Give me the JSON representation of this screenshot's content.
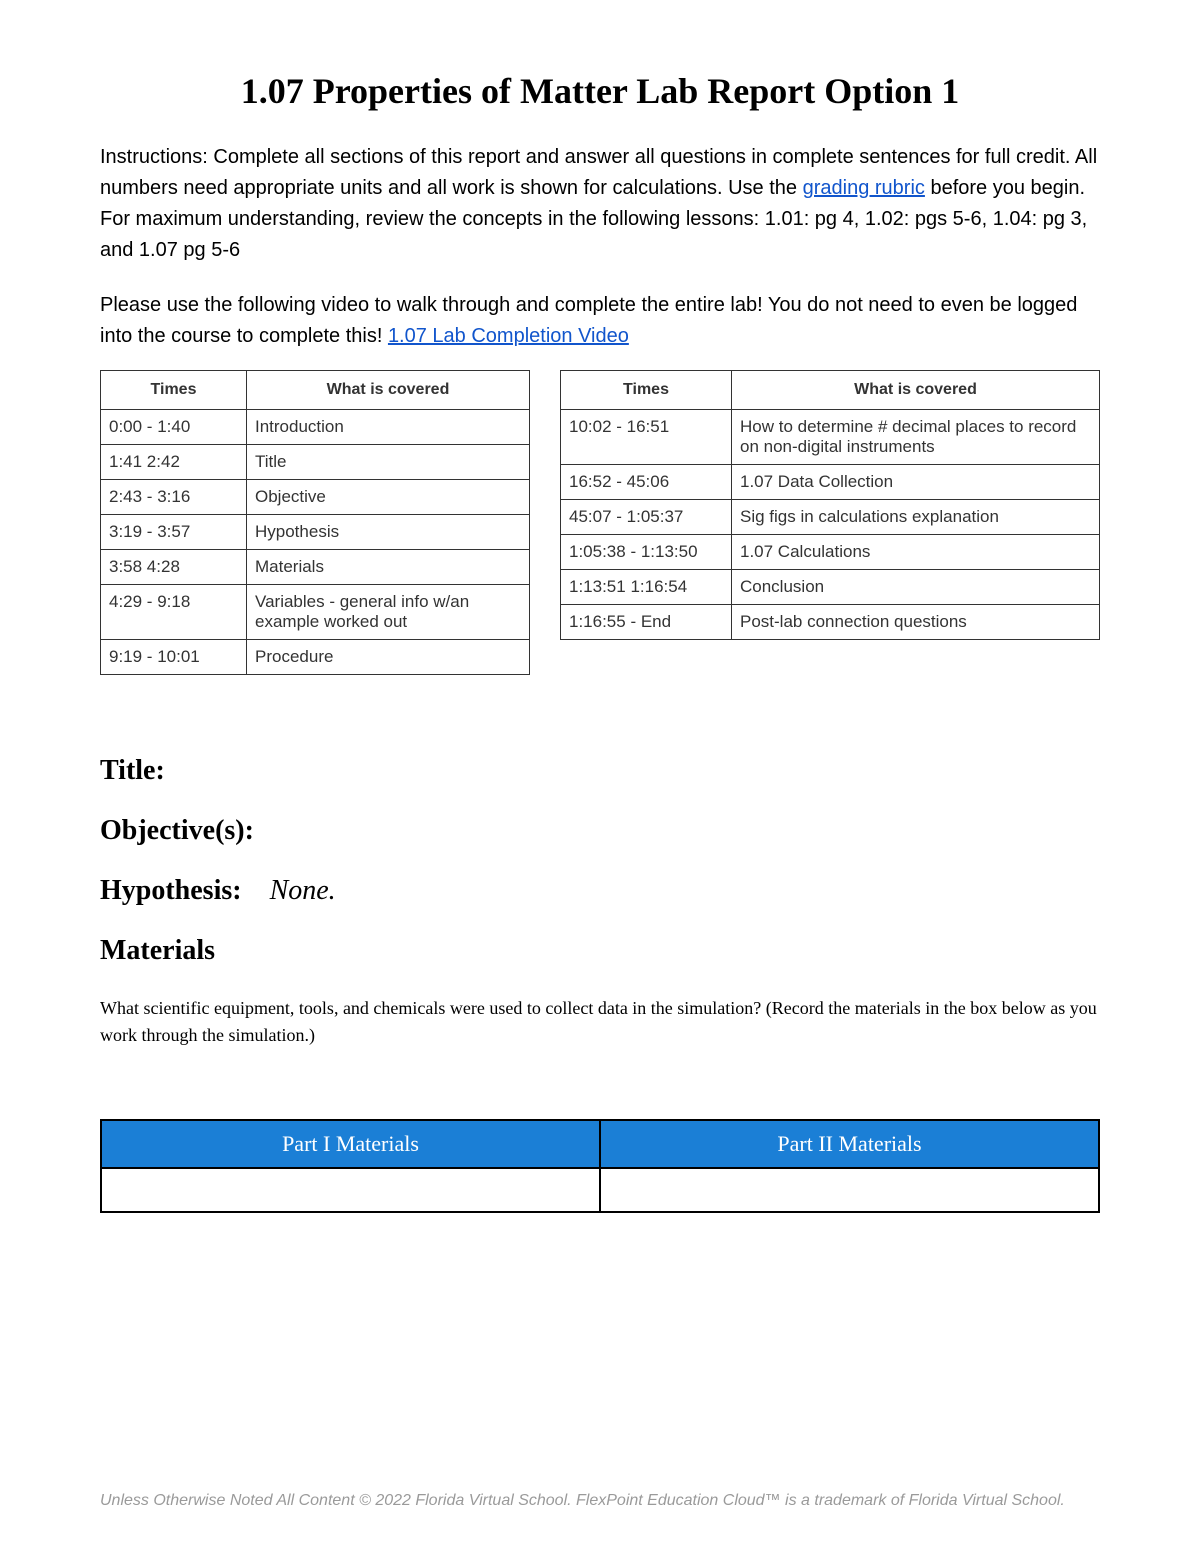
{
  "title": "1.07 Properties of Matter Lab Report Option 1",
  "instructions": {
    "prefix": "Instructions: Complete all sections of this report and answer all questions in complete sentences for full credit.  All numbers need appropriate units and all work is shown for calculations. Use the ",
    "link_text": "grading rubric",
    "suffix": " before you begin.  For maximum understanding, review the concepts in the following lessons:  1.01: pg 4, 1.02: pgs 5-6, 1.04: pg 3, and 1.07 pg 5-6"
  },
  "video_note": {
    "prefix": "Please use the following video to walk through and complete the entire lab!  You do not need to even be logged into the course to complete this!  ",
    "link_text": "1.07 Lab Completion Video"
  },
  "table_headers": {
    "times": "Times",
    "covered": "What is covered"
  },
  "table_left": {
    "rows": [
      {
        "time": "0:00 - 1:40",
        "topic": "Introduction"
      },
      {
        "time": "1:41   2:42",
        "topic": "Title"
      },
      {
        "time": "2:43 - 3:16",
        "topic": "Objective"
      },
      {
        "time": "3:19 - 3:57",
        "topic": "Hypothesis"
      },
      {
        "time": "3:58   4:28",
        "topic": "Materials"
      },
      {
        "time": "4:29 - 9:18",
        "topic": "Variables - general info w/an example worked out"
      },
      {
        "time": "9:19 - 10:01",
        "topic": "Procedure"
      }
    ]
  },
  "table_right": {
    "rows": [
      {
        "time": "10:02 - 16:51",
        "topic": "How to determine # decimal places to record on non-digital instruments"
      },
      {
        "time": "16:52 - 45:06",
        "topic": "1.07 Data Collection"
      },
      {
        "time": "45:07 - 1:05:37",
        "topic": "Sig figs in calculations explanation"
      },
      {
        "time": "1:05:38 - 1:13:50",
        "topic": "1.07 Calculations"
      },
      {
        "time": "1:13:51   1:16:54",
        "topic": "Conclusion"
      },
      {
        "time": "1:16:55 - End",
        "topic": "Post-lab connection questions"
      }
    ]
  },
  "sections": {
    "title_label": "Title:",
    "objectives_label": "Objective(s):",
    "hypothesis_label": "Hypothesis:",
    "hypothesis_value": "None.",
    "materials_label": "Materials",
    "materials_prompt": "What scientific equipment, tools, and chemicals were used to collect data in the simulation? (Record the materials in the box below as you work through the simulation.)"
  },
  "materials_table": {
    "header_left": "Part I Materials",
    "header_right": "Part II Materials",
    "header_bg": "#1b7fd6",
    "header_text_color": "#ffffff"
  },
  "footer": "Unless Otherwise Noted All Content © 2022 Florida Virtual School. FlexPoint Education Cloud™ is a trademark of Florida Virtual School.",
  "colors": {
    "link": "#1155cc",
    "text": "#000000",
    "footer_text": "#9a9a9a",
    "border": "#333333"
  }
}
